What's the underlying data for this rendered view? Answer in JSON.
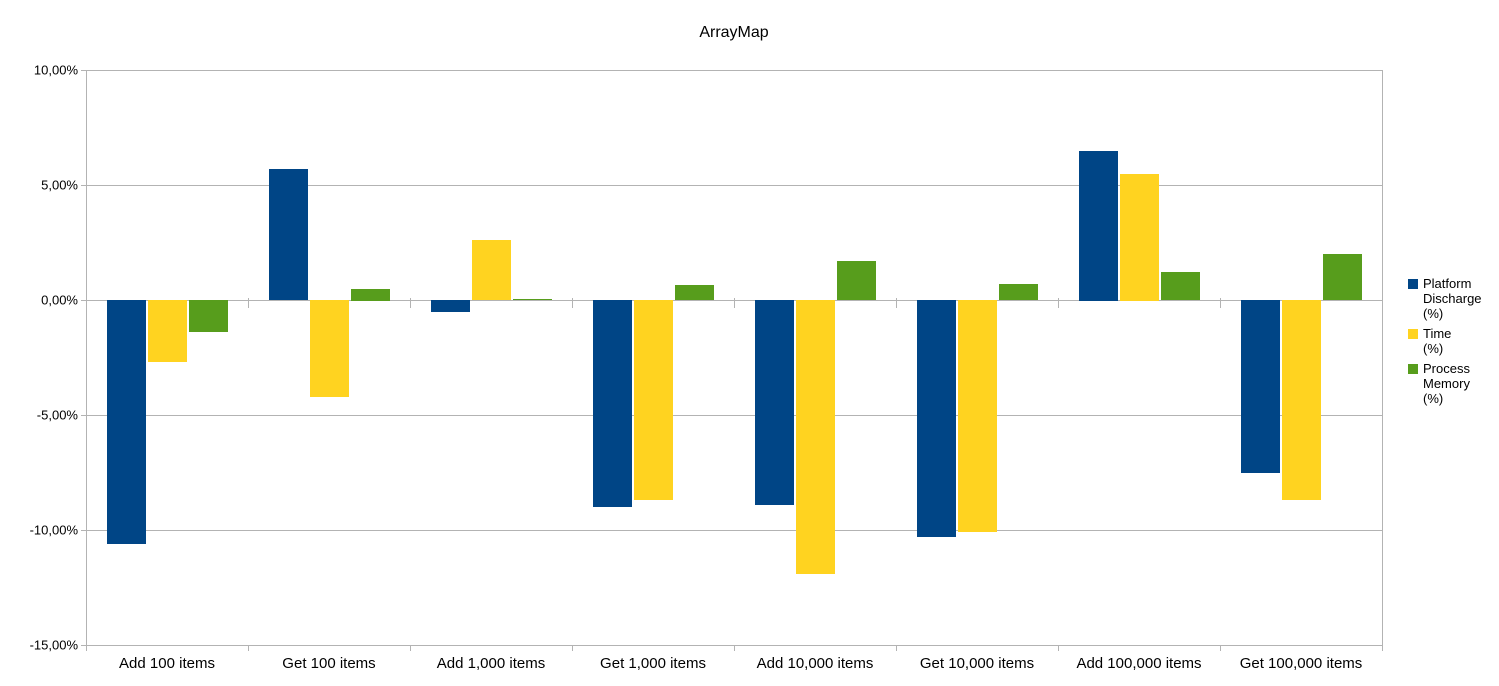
{
  "chart_data": {
    "type": "bar",
    "title": "ArrayMap",
    "categories": [
      "Add 100 items",
      "Get 100 items",
      "Add 1,000 items",
      "Get 1,000 items",
      "Add 10,000 items",
      "Get 10,000 items",
      "Add 100,000 items",
      "Get 100,000 items"
    ],
    "series": [
      {
        "name": "Platform Discharge (%)",
        "color": "#004586",
        "values": [
          -10.6,
          5.7,
          -0.5,
          -9.0,
          -8.9,
          -10.3,
          6.5,
          -7.5
        ]
      },
      {
        "name": "Time (%)",
        "color": "#FFD320",
        "values": [
          -2.7,
          -4.2,
          2.6,
          -8.7,
          -11.9,
          -10.1,
          5.5,
          -8.7
        ]
      },
      {
        "name": "Process Memory (%)",
        "color": "#579D1C",
        "values": [
          -1.4,
          0.5,
          0.05,
          0.65,
          1.7,
          0.7,
          1.2,
          2.0
        ]
      }
    ],
    "xlabel": "",
    "ylabel": "",
    "ylim": [
      -15,
      10
    ],
    "ytick_step": 5,
    "ytick_labels": [
      "10,00%",
      "5,00%",
      "0,00%",
      "-5,00%",
      "-10,00%",
      "-15,00%"
    ],
    "grid": true,
    "legend_position": "right",
    "legend_entries": [
      {
        "lines": [
          "Platform",
          "Discharge",
          "(%)"
        ],
        "color": "#004586"
      },
      {
        "lines": [
          "Time",
          "(%)"
        ],
        "color": "#FFD320"
      },
      {
        "lines": [
          "Process",
          "Memory",
          "(%)"
        ],
        "color": "#579D1C"
      }
    ],
    "colors": {
      "gridline": "#b3b3b3",
      "axis": "#b3b3b3",
      "text": "#000000",
      "background": "#ffffff"
    }
  }
}
